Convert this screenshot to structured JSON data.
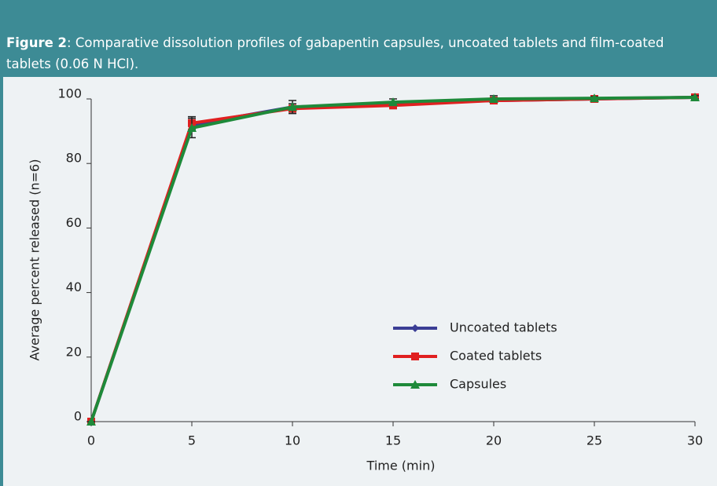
{
  "chart_data": {
    "type": "line",
    "figure_label": "Figure 2",
    "title": ": Comparative dissolution profiles of gabapentin capsules, uncoated tablets and film-coated tablets (0.06 N HCl).",
    "x_label": "Time (min)",
    "y_label": "Average percent released (n=6)",
    "x": [
      0,
      5,
      10,
      15,
      20,
      25,
      30
    ],
    "series": [
      {
        "name": "Uncoated tablets",
        "color": "#3b3e95",
        "marker": "diamond",
        "values": [
          0,
          92,
          97.5,
          98.5,
          99.5,
          100,
          100.5
        ]
      },
      {
        "name": "Coated tablets",
        "color": "#e02020",
        "marker": "square",
        "values": [
          0,
          92.5,
          97,
          98,
          99.5,
          100,
          100.5
        ],
        "errors": [
          0,
          2,
          1.5,
          1,
          1,
          0.5,
          0.5
        ]
      },
      {
        "name": "Capsules",
        "color": "#1e8a3a",
        "marker": "triangle",
        "values": [
          0,
          91,
          97.5,
          99,
          100,
          100.2,
          100.5
        ],
        "errors": [
          0,
          3,
          2,
          1,
          1,
          0.5,
          0.5
        ]
      }
    ],
    "xlim": [
      0,
      30
    ],
    "xticks": [
      0,
      5,
      10,
      15,
      20,
      25,
      30
    ],
    "ylim": [
      0,
      100
    ],
    "yticks": [
      0,
      20,
      40,
      60,
      80,
      100
    ],
    "grid": false,
    "legend_position": "lower right"
  }
}
